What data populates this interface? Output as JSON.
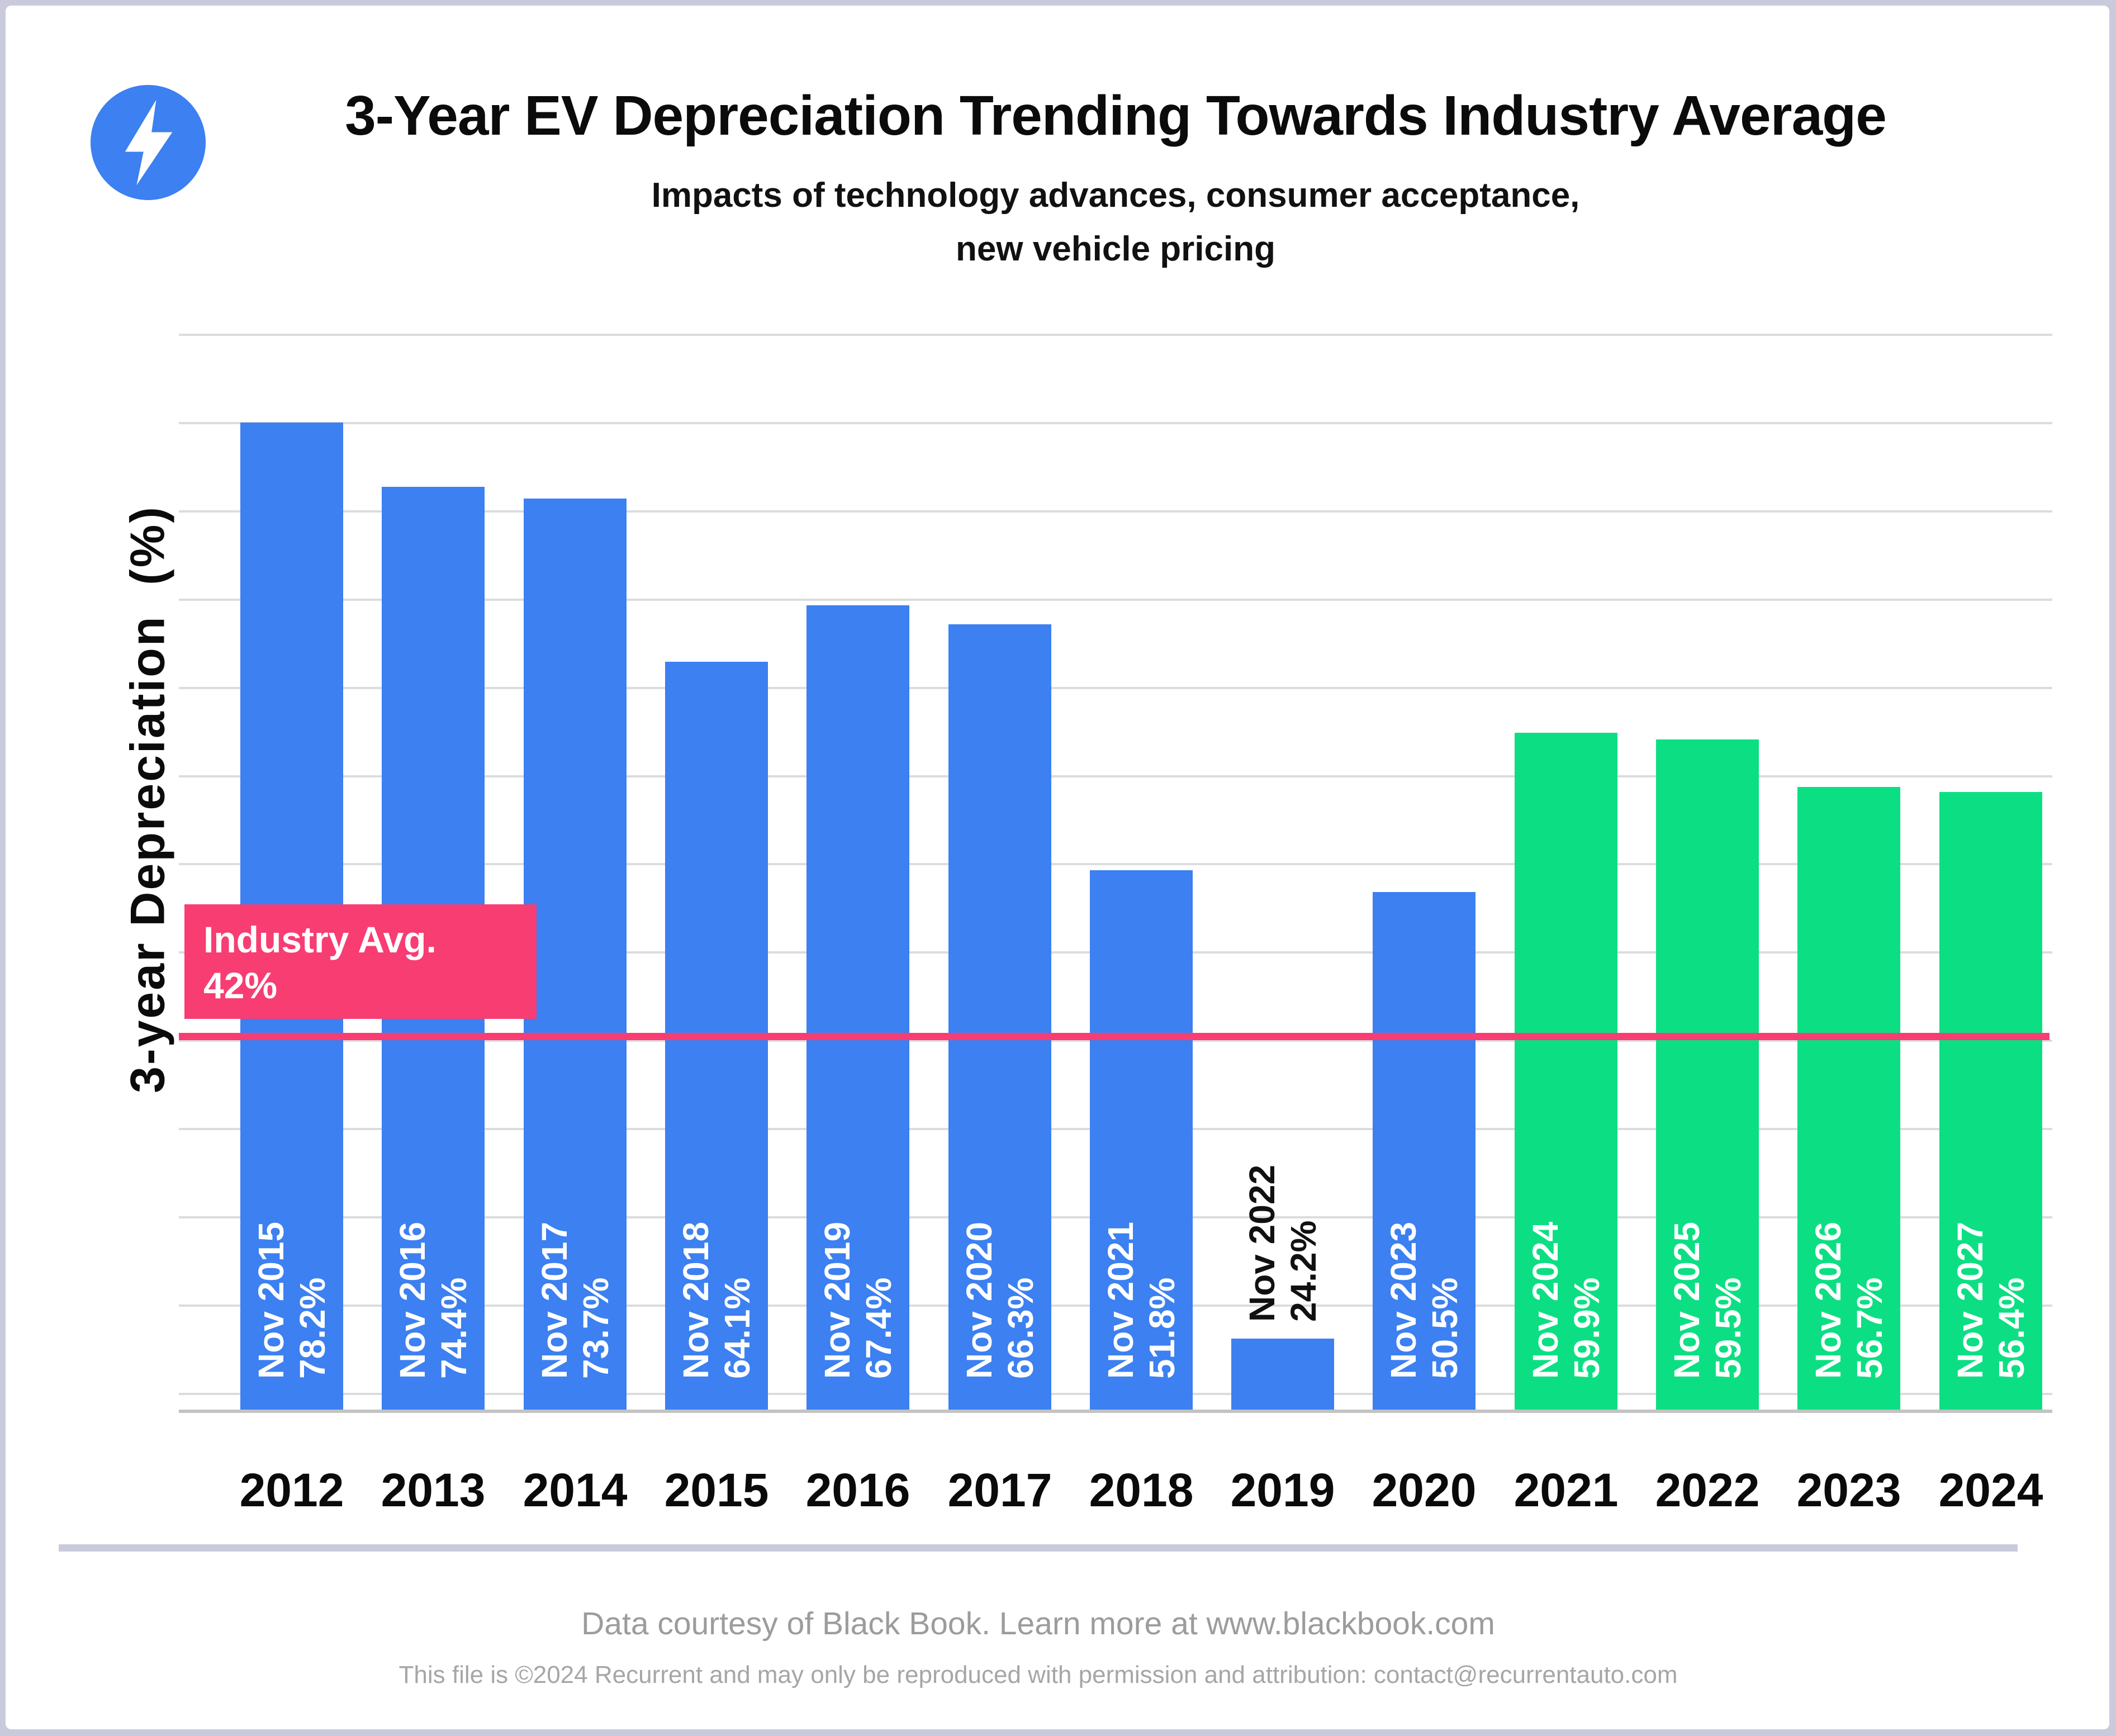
{
  "chart_data": {
    "type": "bar",
    "title": "3-Year EV Depreciation Trending Towards Industry Average",
    "subtitle": [
      "Impacts of technology advances, consumer acceptance,",
      "new vehicle pricing"
    ],
    "ylabel": "3-year Depreciation  (%)",
    "xlabel": "",
    "ylim": [
      20,
      85
    ],
    "grid": true,
    "legend_position": "none",
    "icon": "lightning-bolt-icon",
    "categories": [
      "2012",
      "2013",
      "2014",
      "2015",
      "2016",
      "2017",
      "2018",
      "2019",
      "2020",
      "2021",
      "2022",
      "2023",
      "2024"
    ],
    "bars": [
      {
        "category": "2012",
        "label_month": "Nov 2015",
        "label_value": "78.2%",
        "value": 78.2,
        "group": "actual",
        "label_placement": "inside"
      },
      {
        "category": "2013",
        "label_month": "Nov 2016",
        "label_value": "74.4%",
        "value": 74.4,
        "group": "actual",
        "label_placement": "inside"
      },
      {
        "category": "2014",
        "label_month": "Nov 2017",
        "label_value": "73.7%",
        "value": 73.7,
        "group": "actual",
        "label_placement": "inside"
      },
      {
        "category": "2015",
        "label_month": "Nov 2018",
        "label_value": "64.1%",
        "value": 64.1,
        "group": "actual",
        "label_placement": "inside"
      },
      {
        "category": "2016",
        "label_month": "Nov 2019",
        "label_value": "67.4%",
        "value": 67.4,
        "group": "actual",
        "label_placement": "inside"
      },
      {
        "category": "2017",
        "label_month": "Nov 2020",
        "label_value": "66.3%",
        "value": 66.3,
        "group": "actual",
        "label_placement": "inside"
      },
      {
        "category": "2018",
        "label_month": "Nov 2021",
        "label_value": "51.8%",
        "value": 51.8,
        "group": "actual",
        "label_placement": "inside"
      },
      {
        "category": "2019",
        "label_month": "Nov 2022",
        "label_value": "24.2%",
        "value": 24.2,
        "group": "actual",
        "label_placement": "above"
      },
      {
        "category": "2020",
        "label_month": "Nov 2023",
        "label_value": "50.5%",
        "value": 50.5,
        "group": "actual",
        "label_placement": "inside"
      },
      {
        "category": "2021",
        "label_month": "Nov 2024",
        "label_value": "59.9%",
        "value": 59.9,
        "group": "forecast",
        "label_placement": "inside"
      },
      {
        "category": "2022",
        "label_month": "Nov 2025",
        "label_value": "59.5%",
        "value": 59.5,
        "group": "forecast",
        "label_placement": "inside"
      },
      {
        "category": "2023",
        "label_month": "Nov 2026",
        "label_value": "56.7%",
        "value": 56.7,
        "group": "forecast",
        "label_placement": "inside"
      },
      {
        "category": "2024",
        "label_month": "Nov 2027",
        "label_value": "56.4%",
        "value": 56.4,
        "group": "forecast",
        "label_placement": "inside"
      }
    ],
    "reference_line": {
      "label": "Industry Avg.",
      "label_value": "42%",
      "value": 42
    },
    "colors": {
      "actual_bar": "#3c80f1",
      "forecast_bar": "#0cdf83",
      "reference": "#f73d72",
      "label_on_bar": "#ffffff",
      "label_outside_bar": "#111111",
      "icon_circle": "#3c80f1"
    }
  },
  "footer": {
    "line1": "Data courtesy of Black Book. Learn more at www.blackbook.com",
    "line2": "This file is ©2024 Recurrent and may only be reproduced with permission and attribution: contact@recurrentauto.com"
  }
}
